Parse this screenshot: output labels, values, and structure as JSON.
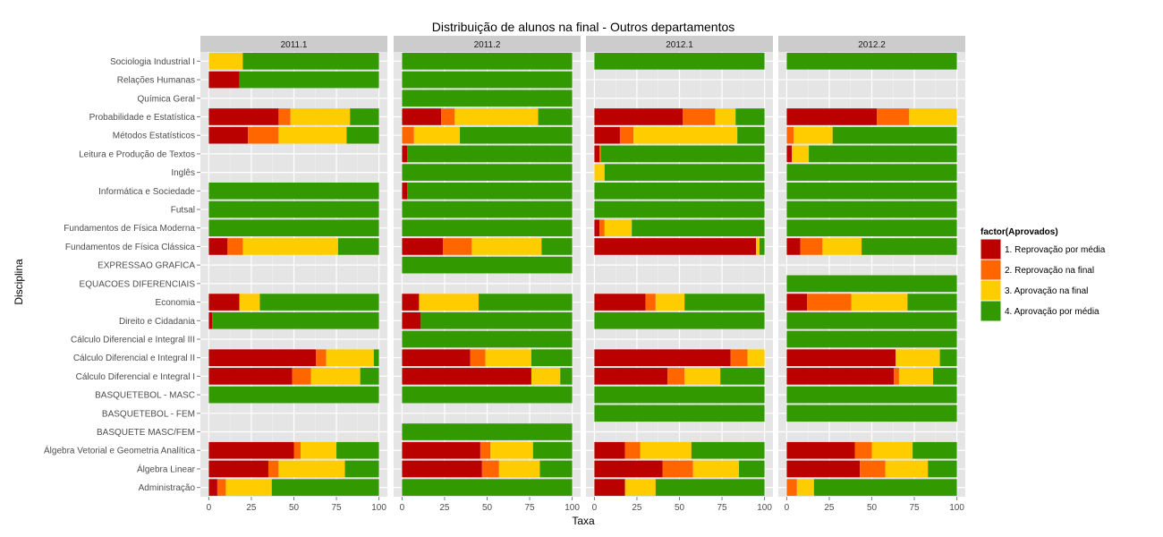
{
  "chart_data": {
    "type": "bar",
    "orientation": "horizontal",
    "stacked": true,
    "title": "Distribuição de alunos na final - Outros departamentos",
    "xlabel": "Taxa",
    "ylabel": "Disciplina",
    "xlim": [
      0,
      100
    ],
    "xticks": [
      "0",
      "25",
      "50",
      "75",
      "100"
    ],
    "grid": true,
    "legend": {
      "title": "factor(Aprovados)",
      "position": "right",
      "items": [
        {
          "label": "1. Reprovação por média",
          "color": "#BB0000"
        },
        {
          "label": "2. Reprovação na final",
          "color": "#FF6600"
        },
        {
          "label": "3. Aprovação na final",
          "color": "#FFCC00"
        },
        {
          "label": "4. Aprovação por média",
          "color": "#339900"
        }
      ]
    },
    "categories": [
      "Sociologia Industrial I",
      "Relações Humanas",
      "Química Geral",
      "Probabilidade e Estatística",
      "Métodos Estatísticos",
      "Leitura e Produção de Textos",
      "Inglês",
      "Informática e Sociedade",
      "Futsal",
      "Fundamentos de Física Moderna",
      "Fundamentos de Física Clássica",
      "EXPRESSAO GRAFICA",
      "EQUACOES DIFERENCIAIS",
      "Economia",
      "Direito e Cidadania",
      "Cálculo Diferencial e Integral III",
      "Cálculo Diferencial e Integral II",
      "Cálculo Diferencial e Integral I",
      "BASQUETEBOL - MASC",
      "BASQUETEBOL - FEM",
      "BASQUETE   MASC/FEM",
      "Álgebra Vetorial e Geometria Analítica",
      "Álgebra Linear",
      "Administração"
    ],
    "facets": [
      {
        "label": "2011.1",
        "rows": [
          [
            0,
            0,
            20,
            80
          ],
          [
            18,
            0,
            0,
            82
          ],
          null,
          [
            41,
            7,
            35,
            17
          ],
          [
            23,
            18,
            40,
            19
          ],
          null,
          null,
          [
            0,
            0,
            0,
            100
          ],
          [
            0,
            0,
            0,
            100
          ],
          [
            0,
            0,
            0,
            100
          ],
          [
            11,
            9,
            56,
            24
          ],
          null,
          null,
          [
            18,
            0,
            12,
            70
          ],
          [
            2,
            0,
            0,
            98
          ],
          null,
          [
            63,
            6,
            28,
            3
          ],
          [
            49,
            11,
            29,
            11
          ],
          [
            0,
            0,
            0,
            100
          ],
          null,
          null,
          [
            50,
            4,
            21,
            25
          ],
          [
            35,
            6,
            39,
            20
          ],
          [
            5,
            5,
            27,
            63
          ]
        ]
      },
      {
        "label": "2011.2",
        "rows": [
          [
            0,
            0,
            0,
            100
          ],
          [
            0,
            0,
            0,
            100
          ],
          [
            0,
            0,
            0,
            100
          ],
          [
            23,
            8,
            49,
            20
          ],
          [
            0,
            7,
            27,
            66
          ],
          [
            3,
            0,
            0,
            97
          ],
          [
            0,
            0,
            0,
            100
          ],
          [
            3,
            0,
            0,
            97
          ],
          [
            0,
            0,
            0,
            100
          ],
          [
            0,
            0,
            0,
            100
          ],
          [
            24,
            17,
            41,
            18
          ],
          [
            0,
            0,
            0,
            100
          ],
          null,
          [
            10,
            0,
            35,
            55
          ],
          [
            11,
            0,
            0,
            89
          ],
          [
            0,
            0,
            0,
            100
          ],
          [
            40,
            9,
            27,
            24
          ],
          [
            76,
            0,
            17,
            7
          ],
          [
            0,
            0,
            0,
            100
          ],
          null,
          [
            0,
            0,
            0,
            100
          ],
          [
            46,
            6,
            25,
            23
          ],
          [
            47,
            10,
            24,
            19
          ],
          [
            0,
            0,
            0,
            100
          ]
        ]
      },
      {
        "label": "2012.1",
        "rows": [
          [
            0,
            0,
            0,
            100
          ],
          null,
          null,
          [
            52,
            19,
            12,
            17
          ],
          [
            15,
            8,
            61,
            16
          ],
          [
            3,
            1,
            0,
            96
          ],
          [
            0,
            0,
            6,
            94
          ],
          [
            0,
            0,
            0,
            100
          ],
          [
            0,
            0,
            0,
            100
          ],
          [
            3,
            3,
            16,
            78
          ],
          [
            95,
            0,
            2,
            3
          ],
          null,
          null,
          [
            30,
            6,
            17,
            47
          ],
          [
            0,
            0,
            0,
            100
          ],
          null,
          [
            80,
            10,
            10,
            0
          ],
          [
            43,
            10,
            21,
            26
          ],
          [
            0,
            0,
            0,
            100
          ],
          [
            0,
            0,
            0,
            100
          ],
          null,
          [
            18,
            9,
            30,
            43
          ],
          [
            40,
            18,
            27,
            15
          ],
          [
            18,
            0,
            18,
            64
          ]
        ]
      },
      {
        "label": "2012.2",
        "rows": [
          [
            0,
            0,
            0,
            100
          ],
          null,
          null,
          [
            53,
            19,
            28,
            0
          ],
          [
            0,
            4,
            23,
            73
          ],
          [
            3,
            0,
            10,
            87
          ],
          [
            0,
            0,
            0,
            100
          ],
          [
            0,
            0,
            0,
            100
          ],
          [
            0,
            0,
            0,
            100
          ],
          [
            0,
            0,
            0,
            100
          ],
          [
            8,
            13,
            23,
            56
          ],
          null,
          [
            0,
            0,
            0,
            100
          ],
          [
            12,
            26,
            33,
            29
          ],
          [
            0,
            0,
            0,
            100
          ],
          [
            0,
            0,
            0,
            100
          ],
          [
            64,
            0,
            26,
            10
          ],
          [
            63,
            3,
            20,
            14
          ],
          [
            0,
            0,
            0,
            100
          ],
          [
            0,
            0,
            0,
            100
          ],
          null,
          [
            40,
            10,
            24,
            26
          ],
          [
            43,
            15,
            25,
            17
          ],
          [
            0,
            6,
            10,
            84
          ]
        ]
      }
    ]
  }
}
